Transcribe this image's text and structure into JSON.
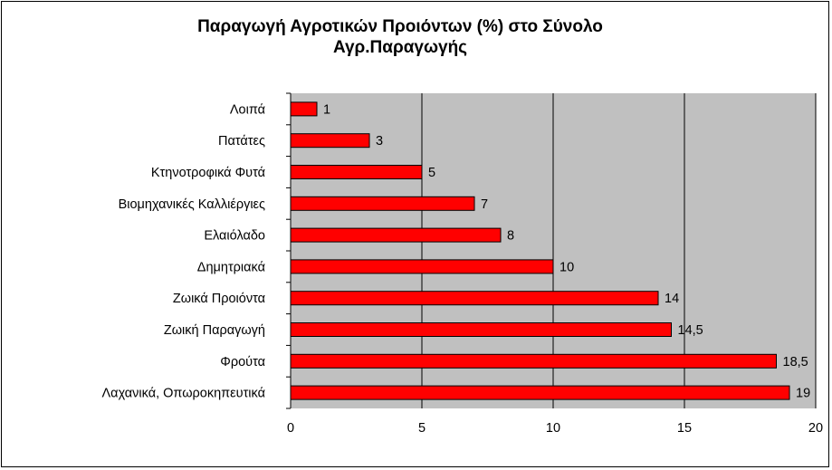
{
  "chart_data": {
    "type": "bar",
    "orientation": "horizontal",
    "title_lines": [
      "Παραγωγή Αγροτικών Προιόντων (%) στο Σύνολο",
      "Αγρ.Παραγωγής"
    ],
    "categories": [
      "Λοιπά",
      "Πατάτες",
      "Κτηνοτροφικά Φυτά",
      "Βιομηχανικές Καλλιέργιες",
      "Ελαιόλαδο",
      "Δημητριακά",
      "Ζωικά Προιόντα",
      "Ζωική Παραγωγή",
      "Φρούτα",
      "Λαχανικά, Οπωροκηπευτικά"
    ],
    "values": [
      1,
      3,
      5,
      7,
      8,
      10,
      14,
      14.5,
      18.5,
      19
    ],
    "value_labels": [
      "1",
      "3",
      "5",
      "7",
      "8",
      "10",
      "14",
      "14,5",
      "18,5",
      "19"
    ],
    "xlim": [
      0,
      20
    ],
    "x_ticks": [
      "0",
      "5",
      "10",
      "15",
      "20"
    ],
    "x_tick_values": [
      0,
      5,
      10,
      15,
      20
    ],
    "grid": true,
    "legend": "none",
    "colors": {
      "bar_fill": "#ff0000",
      "bar_stroke": "#000000",
      "plot_background": "#c0c0c0",
      "gridline": "#000000"
    }
  }
}
